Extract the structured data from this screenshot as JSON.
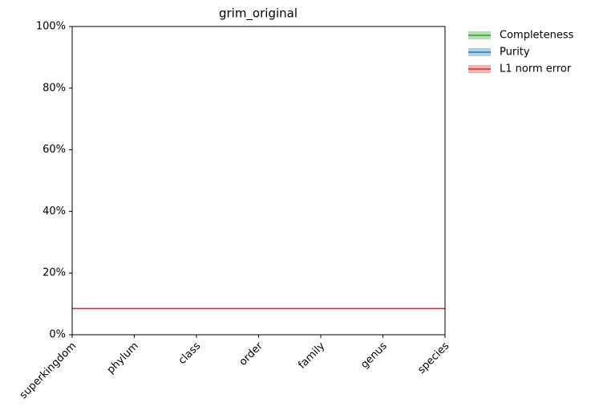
{
  "chart_data": {
    "type": "line",
    "title": "grim_original",
    "categories": [
      "superkingdom",
      "phylum",
      "class",
      "order",
      "family",
      "genus",
      "species"
    ],
    "series": [
      {
        "name": "Completeness",
        "color": "#2ca02c",
        "values": [
          null,
          null,
          null,
          null,
          null,
          null,
          null
        ]
      },
      {
        "name": "Purity",
        "color": "#1f77b4",
        "values": [
          null,
          null,
          null,
          null,
          null,
          null,
          null
        ]
      },
      {
        "name": "L1 norm error",
        "color": "#d62728",
        "values": [
          8.5,
          8.5,
          8.5,
          8.5,
          8.5,
          8.5,
          8.5
        ]
      }
    ],
    "ylim": [
      0,
      100
    ],
    "yticks": [
      {
        "value": 0,
        "label": "0%"
      },
      {
        "value": 20,
        "label": "20%"
      },
      {
        "value": 40,
        "label": "40%"
      },
      {
        "value": 60,
        "label": "60%"
      },
      {
        "value": 80,
        "label": "80%"
      },
      {
        "value": 100,
        "label": "100%"
      }
    ],
    "legend": "outside-upper-right"
  }
}
